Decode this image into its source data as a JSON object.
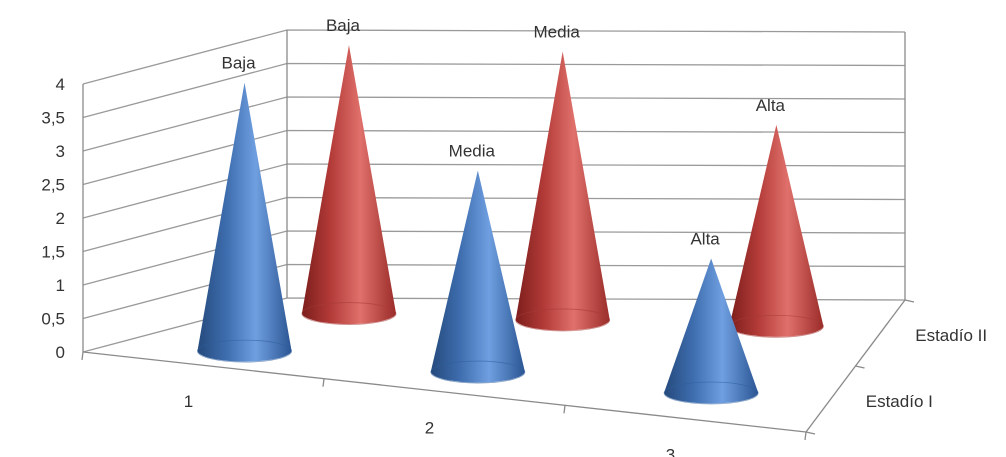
{
  "chart_data": {
    "type": "bar",
    "subtype": "3d-cone",
    "title": "",
    "xlabel": "",
    "ylabel": "",
    "ylim": [
      0,
      4
    ],
    "yticks": [
      "0",
      "0,5",
      "1",
      "1,5",
      "2",
      "2,5",
      "3",
      "3,5",
      "4"
    ],
    "categories": [
      "1",
      "2",
      "3"
    ],
    "grid": true,
    "legend": "none",
    "series": [
      {
        "name": "Estadío I",
        "color": "#4f81bd",
        "values": [
          4,
          3,
          2
        ],
        "labels": [
          "Baja",
          "Media",
          "Alta"
        ]
      },
      {
        "name": "Estadío II",
        "color": "#c0504d",
        "values": [
          4,
          4,
          3
        ],
        "labels": [
          "Baja",
          "Media",
          "Alta"
        ]
      }
    ]
  }
}
